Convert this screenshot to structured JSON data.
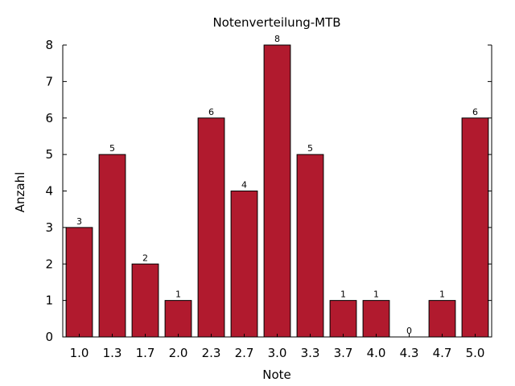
{
  "chart_data": {
    "type": "bar",
    "title": "Notenverteilung-MTB",
    "xlabel": "Note",
    "ylabel": "Anzahl",
    "categories": [
      "1.0",
      "1.3",
      "1.7",
      "2.0",
      "2.3",
      "2.7",
      "3.0",
      "3.3",
      "3.7",
      "4.0",
      "4.3",
      "4.7",
      "5.0"
    ],
    "values": [
      3,
      5,
      2,
      1,
      6,
      4,
      8,
      5,
      1,
      1,
      0,
      1,
      6
    ],
    "ylim": [
      0,
      8
    ],
    "yticks": [
      0,
      1,
      2,
      3,
      4,
      5,
      6,
      7,
      8
    ],
    "grid": false,
    "bar_color": "#b11a2e"
  }
}
